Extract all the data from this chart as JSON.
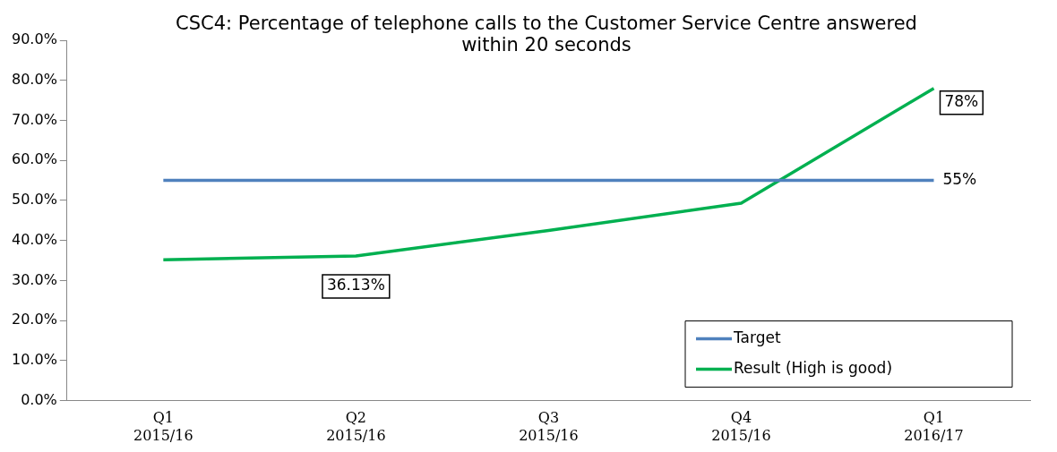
{
  "chart_data": {
    "type": "line",
    "title": "CSC4: Percentage of telephone calls to the Customer Service Centre answered within 20 seconds",
    "categories": [
      "Q1 2015/16",
      "Q2 2015/16",
      "Q3 2015/16",
      "Q4 2015/16",
      "Q1 2016/17"
    ],
    "series": [
      {
        "name": "Target",
        "color": "#4f81bd",
        "values": [
          55,
          55,
          55,
          55,
          55
        ],
        "value_labels": [
          null,
          null,
          null,
          null,
          "55%"
        ]
      },
      {
        "name": "Result (High is good)",
        "color": "#00b050",
        "values": [
          35.2,
          36.13,
          42.5,
          49.3,
          78
        ],
        "value_labels": [
          null,
          "36.13%",
          null,
          null,
          "78%"
        ]
      }
    ],
    "ylim": [
      0,
      90
    ],
    "yticks": [
      {
        "value": 0,
        "label": "0.0%"
      },
      {
        "value": 10,
        "label": "10.0%"
      },
      {
        "value": 20,
        "label": "20.0%"
      },
      {
        "value": 30,
        "label": "30.0%"
      },
      {
        "value": 40,
        "label": "40.0%"
      },
      {
        "value": 50,
        "label": "50.0%"
      },
      {
        "value": 60,
        "label": "60.0%"
      },
      {
        "value": 70,
        "label": "70.0%"
      },
      {
        "value": 80,
        "label": "80.0%"
      },
      {
        "value": 90,
        "label": "90.0%"
      }
    ],
    "grid": false,
    "legend": "bottom right",
    "marker": "none",
    "line_style": "solid"
  }
}
